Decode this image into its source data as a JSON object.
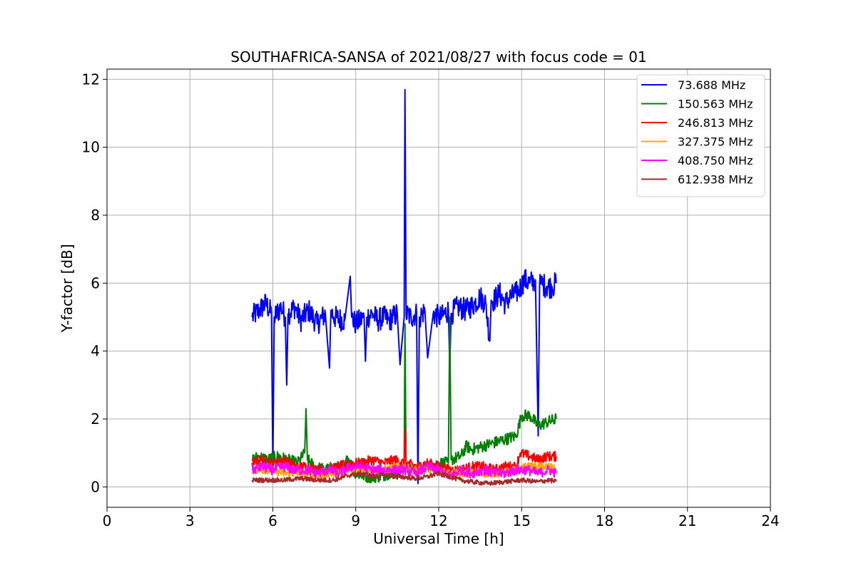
{
  "chart_data": {
    "type": "line",
    "title": "SOUTHAFRICA-SANSA of 2021/08/27 with focus code = 01",
    "xlabel": "Universal Time [h]",
    "ylabel": "Y-factor [dB]",
    "xlim": [
      0,
      24
    ],
    "ylim": [
      -0.6,
      12.3
    ],
    "xticks": [
      0,
      3,
      6,
      9,
      12,
      15,
      18,
      21,
      24
    ],
    "xtick_labels": [
      "0",
      "3",
      "6",
      "9",
      "12",
      "15",
      "18",
      "21",
      "24"
    ],
    "yticks": [
      0,
      2,
      4,
      6,
      8,
      10,
      12
    ],
    "ytick_labels": [
      "0",
      "2",
      "4",
      "6",
      "8",
      "10",
      "12"
    ],
    "grid": true,
    "legend_position": "top-right",
    "series": [
      {
        "name": " 73.688 MHz",
        "color": "#0000ff",
        "x": [
          5.25,
          5.5,
          5.75,
          5.95,
          6.0,
          6.05,
          6.3,
          6.45,
          6.5,
          6.55,
          6.8,
          7.0,
          7.3,
          7.6,
          7.9,
          8.05,
          8.1,
          8.2,
          8.6,
          8.8,
          8.85,
          9.0,
          9.3,
          9.35,
          9.4,
          9.6,
          9.8,
          10.0,
          10.2,
          10.5,
          10.6,
          10.75,
          10.78,
          10.82,
          11.0,
          11.2,
          11.25,
          11.3,
          11.5,
          11.6,
          11.8,
          12.0,
          12.1,
          12.35,
          12.4,
          12.45,
          12.7,
          13.0,
          13.3,
          13.5,
          13.7,
          13.85,
          13.9,
          14.0,
          14.2,
          14.4,
          14.6,
          14.8,
          14.9,
          15.1,
          15.3,
          15.5,
          15.6,
          15.65,
          15.7,
          15.9,
          16.1,
          16.25
        ],
        "y": [
          5.0,
          5.2,
          5.4,
          5.1,
          0.5,
          5.0,
          5.3,
          5.0,
          3.0,
          5.1,
          5.3,
          4.9,
          5.2,
          4.8,
          5.1,
          3.5,
          5.2,
          5.0,
          4.9,
          6.2,
          5.0,
          4.8,
          5.0,
          3.7,
          5.0,
          5.1,
          4.9,
          5.0,
          4.9,
          5.1,
          3.6,
          5.0,
          11.7,
          5.1,
          5.0,
          5.1,
          0.1,
          5.0,
          5.2,
          3.8,
          5.1,
          5.0,
          5.0,
          5.2,
          3.5,
          5.1,
          5.3,
          5.2,
          5.4,
          5.6,
          5.4,
          4.3,
          5.5,
          5.5,
          5.7,
          5.4,
          5.6,
          5.7,
          5.8,
          6.1,
          6.0,
          6.1,
          1.5,
          5.9,
          6.0,
          5.9,
          5.9,
          6.0
        ]
      },
      {
        "name": "150.563 MHz",
        "color": "#008000",
        "x": [
          5.25,
          5.5,
          5.8,
          6.2,
          6.5,
          6.9,
          7.15,
          7.2,
          7.25,
          7.5,
          7.9,
          8.3,
          8.6,
          8.7,
          9.0,
          9.4,
          9.8,
          10.2,
          10.6,
          10.75,
          10.78,
          10.82,
          11.2,
          11.6,
          12.0,
          12.35,
          12.4,
          12.45,
          12.8,
          13.0,
          13.2,
          13.6,
          14.0,
          14.4,
          14.8,
          15.0,
          15.3,
          15.6,
          15.9,
          16.25
        ],
        "y": [
          0.8,
          0.9,
          0.8,
          0.9,
          0.8,
          0.7,
          1.0,
          2.3,
          0.8,
          0.6,
          0.5,
          0.6,
          0.5,
          0.9,
          0.4,
          0.3,
          0.3,
          0.4,
          0.4,
          0.6,
          4.8,
          0.6,
          0.5,
          0.6,
          0.7,
          0.7,
          5.0,
          0.8,
          0.9,
          1.2,
          1.1,
          1.2,
          1.3,
          1.4,
          1.5,
          2.1,
          2.1,
          1.8,
          1.9,
          2.0
        ]
      },
      {
        "name": "246.813 MHz",
        "color": "#ff0000",
        "x": [
          5.25,
          5.6,
          6.0,
          6.4,
          6.8,
          7.2,
          7.6,
          8.0,
          8.4,
          8.8,
          9.2,
          9.6,
          10.0,
          10.4,
          10.75,
          10.78,
          10.82,
          11.2,
          11.6,
          12.0,
          12.4,
          12.8,
          13.2,
          13.6,
          14.0,
          14.4,
          14.8,
          14.95,
          15.3,
          15.6,
          15.9,
          16.25
        ],
        "y": [
          0.7,
          0.8,
          0.7,
          0.8,
          0.6,
          0.6,
          0.5,
          0.5,
          0.6,
          0.7,
          0.7,
          0.8,
          0.7,
          0.8,
          0.7,
          1.7,
          0.7,
          0.6,
          0.7,
          0.6,
          0.5,
          0.5,
          0.6,
          0.6,
          0.5,
          0.6,
          0.6,
          1.0,
          0.9,
          0.8,
          0.9,
          0.9
        ]
      },
      {
        "name": "327.375 MHz",
        "color": "#ffa500",
        "x": [
          5.25,
          5.8,
          6.4,
          7.0,
          7.6,
          8.2,
          8.8,
          9.4,
          10.0,
          10.6,
          11.2,
          11.8,
          12.4,
          13.0,
          13.6,
          14.2,
          14.8,
          15.2,
          15.6,
          16.0,
          16.25
        ],
        "y": [
          0.5,
          0.5,
          0.4,
          0.4,
          0.3,
          0.4,
          0.5,
          0.5,
          0.5,
          0.6,
          0.5,
          0.5,
          0.4,
          0.4,
          0.4,
          0.4,
          0.5,
          0.6,
          0.6,
          0.6,
          0.5
        ]
      },
      {
        "name": "408.750 MHz",
        "color": "#ff00ff",
        "x": [
          5.25,
          5.6,
          6.0,
          6.4,
          6.8,
          7.2,
          7.6,
          8.0,
          8.4,
          8.8,
          9.2,
          9.6,
          10.0,
          10.4,
          10.8,
          11.2,
          11.6,
          12.0,
          12.4,
          12.8,
          13.2,
          13.6,
          14.0,
          14.4,
          14.8,
          15.2,
          15.6,
          16.0,
          16.25
        ],
        "y": [
          0.5,
          0.6,
          0.5,
          0.6,
          0.5,
          0.5,
          0.4,
          0.5,
          0.4,
          0.6,
          0.6,
          0.5,
          0.5,
          0.5,
          0.5,
          0.4,
          0.6,
          0.5,
          0.3,
          0.5,
          0.4,
          0.5,
          0.4,
          0.4,
          0.5,
          0.5,
          0.4,
          0.5,
          0.4
        ]
      },
      {
        "name": "612.938 MHz",
        "color": "#a52a2a",
        "x": [
          5.25,
          5.8,
          6.4,
          7.0,
          7.6,
          8.2,
          8.8,
          9.2,
          9.6,
          10.0,
          10.6,
          11.2,
          11.6,
          12.0,
          12.4,
          12.8,
          13.2,
          13.8,
          14.4,
          15.0,
          15.6,
          16.0,
          16.25
        ],
        "y": [
          0.2,
          0.2,
          0.2,
          0.25,
          0.2,
          0.2,
          0.35,
          0.4,
          0.3,
          0.35,
          0.3,
          0.25,
          0.3,
          0.4,
          0.3,
          0.2,
          0.15,
          0.1,
          0.15,
          0.2,
          0.15,
          0.2,
          0.15
        ]
      }
    ]
  }
}
